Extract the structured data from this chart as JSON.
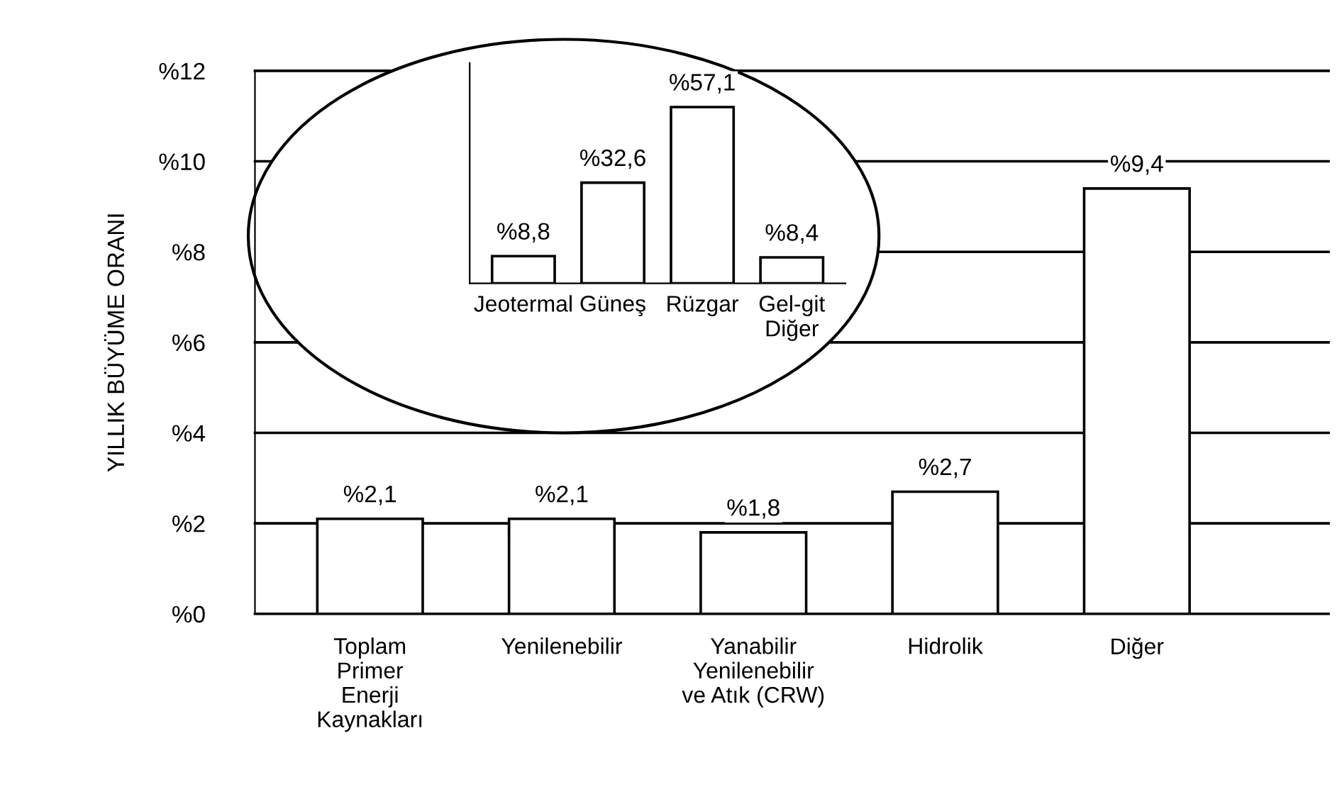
{
  "chart_data": [
    {
      "type": "bar",
      "ylabel": "YILLIK BÜYÜME ORANI",
      "categories": [
        "Toplam\nPrimer\nEnerji\nKaynakları",
        "Yenilenebilir",
        "Yanabilir\nYenilenebilir\nve Atık (CRW)",
        "Hidrolik",
        "Diğer"
      ],
      "values": [
        2.1,
        2.1,
        1.8,
        2.7,
        9.4
      ],
      "value_labels": [
        "%2,1",
        "%2,1",
        "%1,8",
        "%2,7",
        "%9,4"
      ],
      "color": "#ffffff",
      "ylim": [
        0,
        12
      ],
      "yticks": [
        {
          "value": 0,
          "label": "%0"
        },
        {
          "value": 2,
          "label": "%2"
        },
        {
          "value": 4,
          "label": "%4"
        },
        {
          "value": 6,
          "label": "%6"
        },
        {
          "value": 8,
          "label": "%8"
        },
        {
          "value": 10,
          "label": "%10"
        },
        {
          "value": 12,
          "label": "%12"
        }
      ],
      "grid": "y"
    },
    {
      "type": "bar",
      "categories": [
        "Jeotermal",
        "Güneş",
        "Rüzgar",
        "Gel-git\nDiğer"
      ],
      "values": [
        8.8,
        32.6,
        57.1,
        8.4
      ],
      "value_labels": [
        "%8,8",
        "%32,6",
        "%57,1",
        "%8,4"
      ],
      "color": "#ffffff",
      "tick_labels": "x"
    }
  ]
}
